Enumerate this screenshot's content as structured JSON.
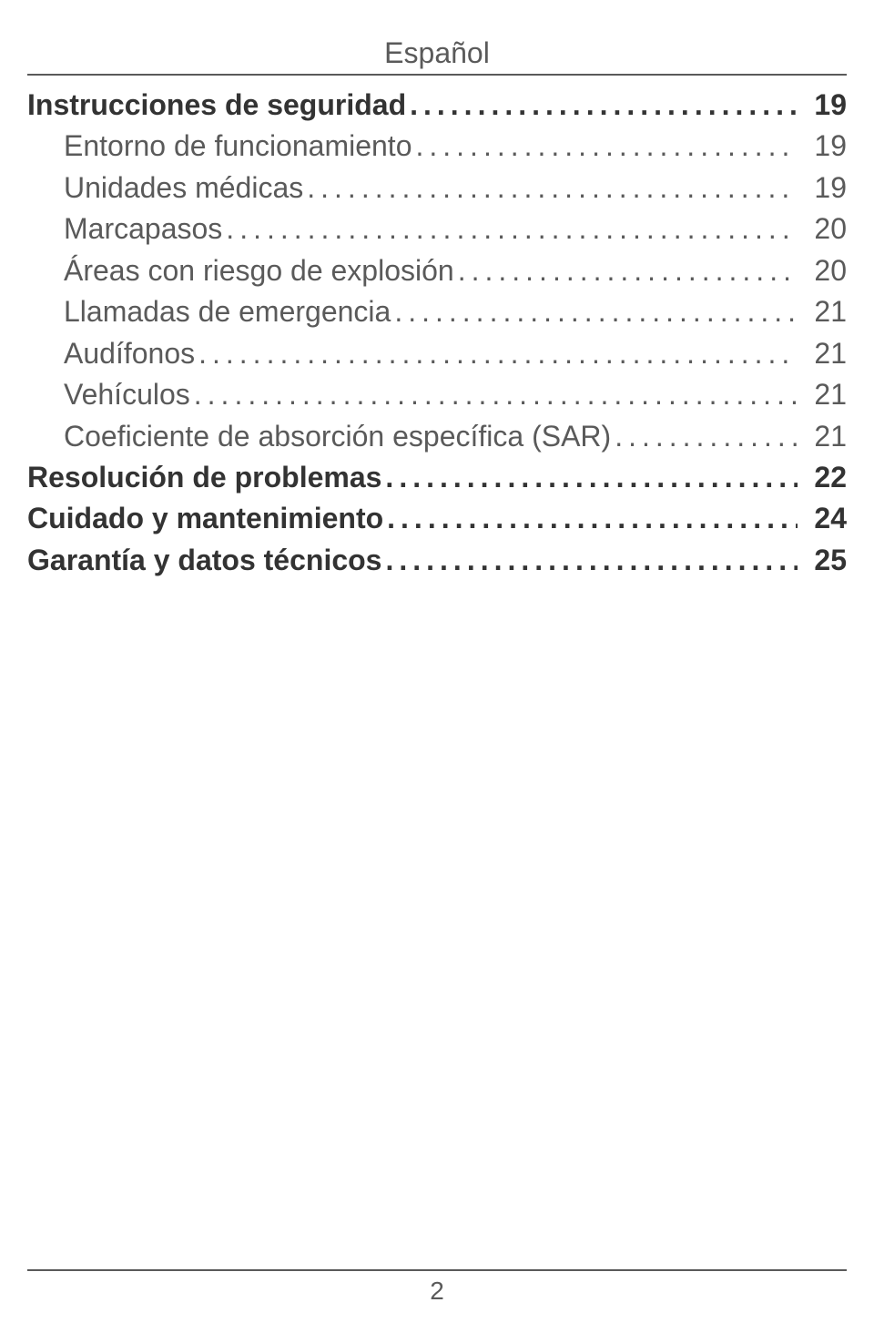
{
  "header": {
    "language": "Español"
  },
  "toc": {
    "entries": [
      {
        "label": "Instrucciones de seguridad",
        "page": "19",
        "bold": true,
        "indent": false
      },
      {
        "label": "Entorno de funcionamiento",
        "page": "19",
        "bold": false,
        "indent": true
      },
      {
        "label": "Unidades médicas",
        "page": "19",
        "bold": false,
        "indent": true
      },
      {
        "label": "Marcapasos",
        "page": "20",
        "bold": false,
        "indent": true
      },
      {
        "label": "Áreas con riesgo de explosión",
        "page": "20",
        "bold": false,
        "indent": true
      },
      {
        "label": "Llamadas de emergencia",
        "page": "21",
        "bold": false,
        "indent": true
      },
      {
        "label": "Audífonos",
        "page": "21",
        "bold": false,
        "indent": true
      },
      {
        "label": "Vehículos",
        "page": "21",
        "bold": false,
        "indent": true
      },
      {
        "label": "Coeficiente de absorción específica (SAR)",
        "page": "21",
        "bold": false,
        "indent": true
      },
      {
        "label": "Resolución de problemas",
        "page": "22",
        "bold": true,
        "indent": false
      },
      {
        "label": "Cuidado y mantenimiento",
        "page": "24",
        "bold": true,
        "indent": false
      },
      {
        "label": "Garantía y datos técnicos",
        "page": "25",
        "bold": true,
        "indent": false
      }
    ]
  },
  "footer": {
    "page_number": "2"
  },
  "colors": {
    "text_primary": "#333333",
    "text_secondary": "#5a5a5a",
    "rule": "#5a5a5a",
    "background": "#ffffff"
  },
  "typography": {
    "body_fontsize_pt": 24,
    "footer_fontsize_pt": 21,
    "font_family": "Arial"
  }
}
